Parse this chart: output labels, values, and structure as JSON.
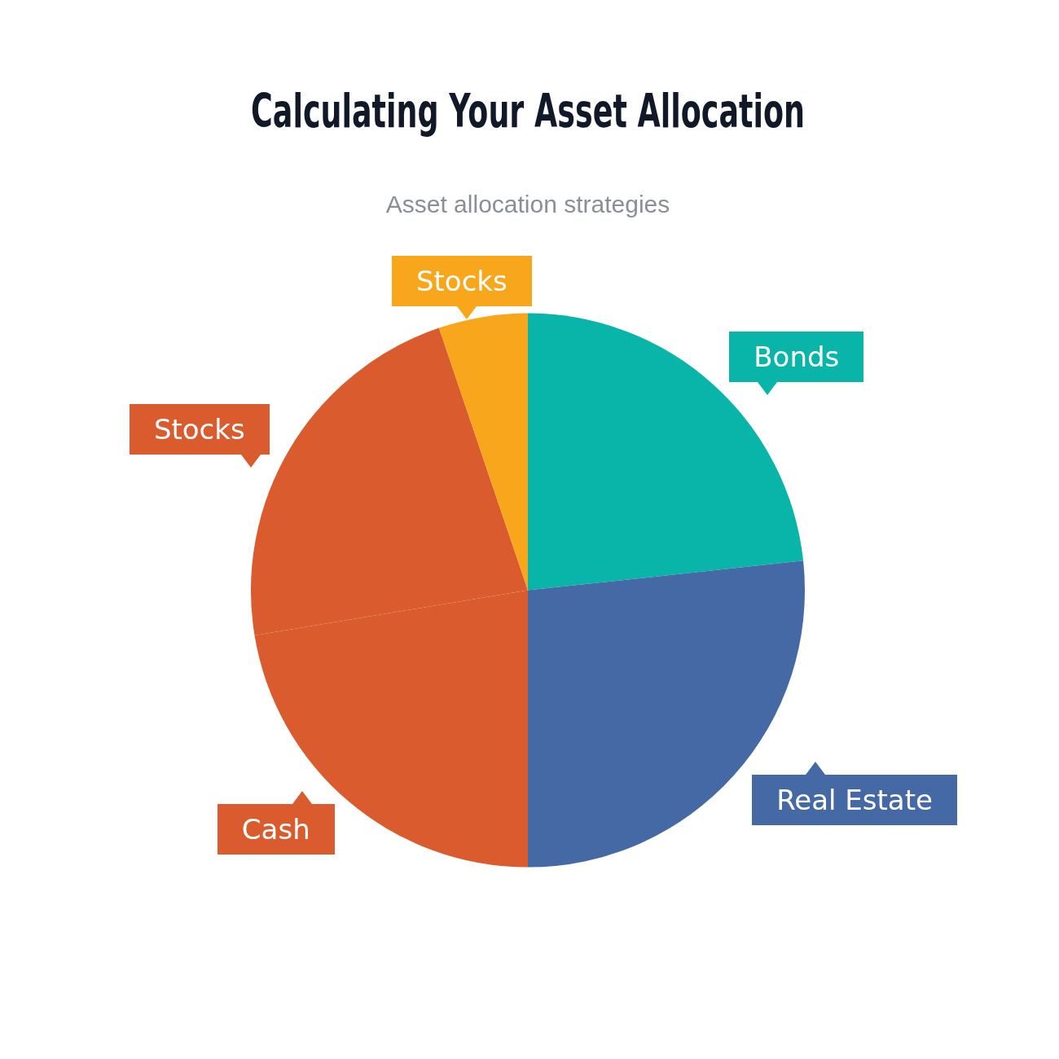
{
  "chart_data": {
    "type": "pie",
    "title": "Calculating Your Asset Allocation",
    "subtitle": "Asset allocation strategies",
    "categories": [
      "Bonds",
      "Real Estate",
      "Cash",
      "Stocks",
      "Stocks"
    ],
    "values": [
      23.3,
      26.7,
      22.4,
      22.4,
      5.2
    ],
    "colors": [
      "#08b5a8",
      "#4569a4",
      "#d95b2e",
      "#d95b2e",
      "#f8a61c"
    ]
  }
}
